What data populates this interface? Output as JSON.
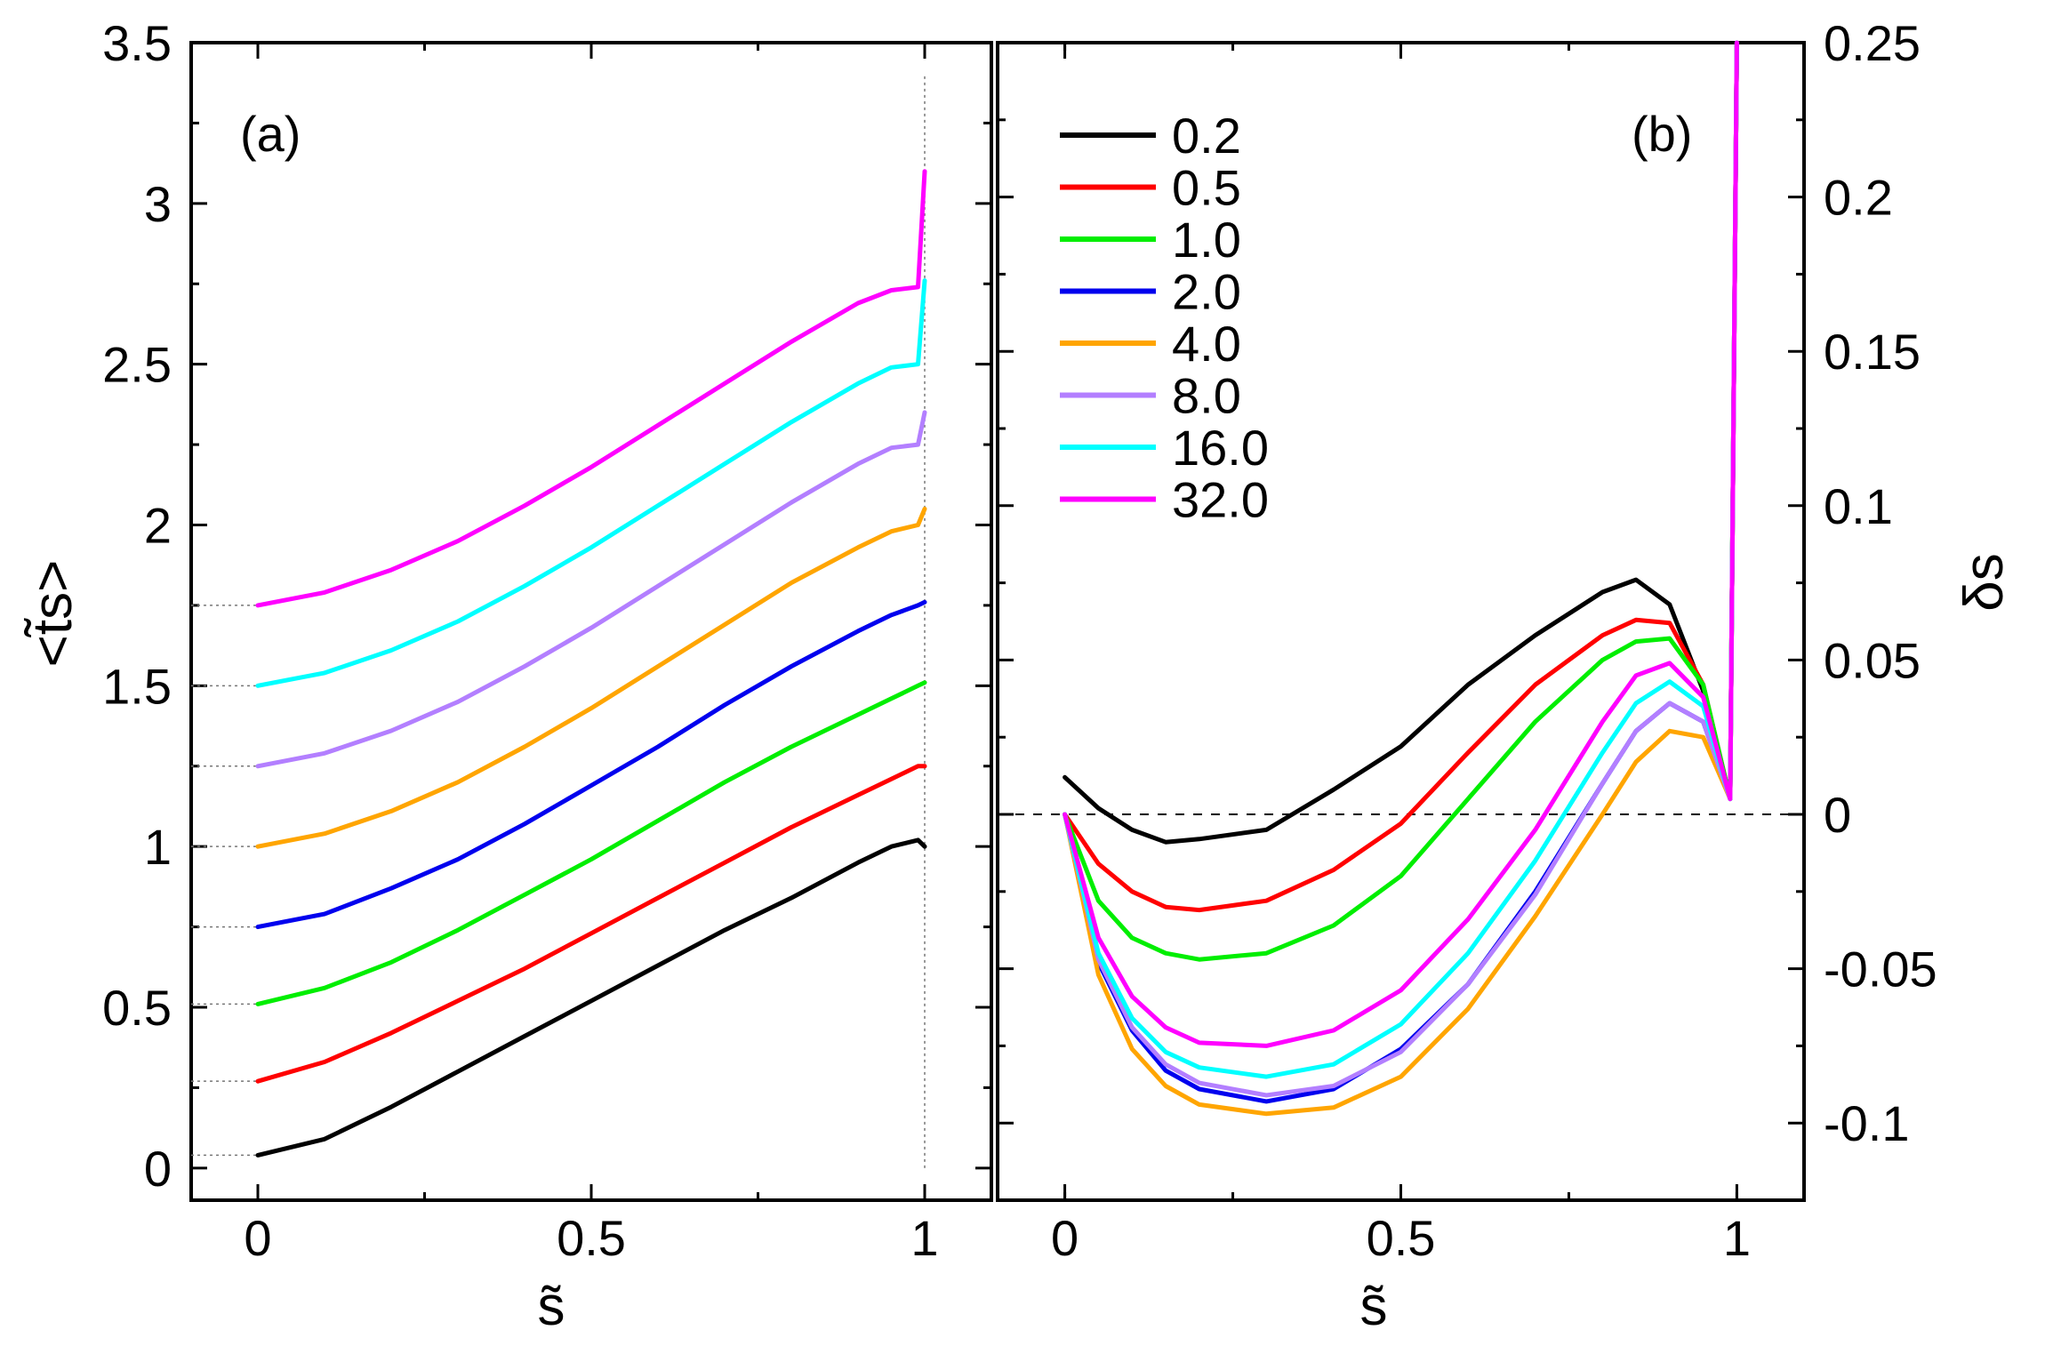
{
  "chart_data": [
    {
      "type": "line",
      "panel": "(a)",
      "xlabel": "s̃",
      "ylabel": "<t̃s>",
      "xlim": [
        -0.1,
        1.1
      ],
      "ylim": [
        -0.1,
        3.5
      ],
      "x_ticks": [
        "0",
        "0.5",
        "1"
      ],
      "y_ticks": [
        "0",
        "0.5",
        "1",
        "1.5",
        "2",
        "2.5",
        "3",
        "3.5"
      ],
      "x_tick_values": [
        0,
        0.5,
        1
      ],
      "y_tick_values": [
        0,
        0.5,
        1,
        1.5,
        2,
        2.5,
        3,
        3.5
      ],
      "note": "curves offset vertically by 0.25 each; end spike at s=1",
      "series": [
        {
          "name": "0.2",
          "color": "#000000",
          "x": [
            0,
            0.1,
            0.2,
            0.3,
            0.4,
            0.5,
            0.6,
            0.7,
            0.8,
            0.9,
            0.95,
            0.99,
            1.0
          ],
          "values": [
            0.04,
            0.09,
            0.19,
            0.3,
            0.41,
            0.52,
            0.63,
            0.74,
            0.84,
            0.95,
            1.0,
            1.02,
            1.0
          ]
        },
        {
          "name": "0.5",
          "color": "#ff0000",
          "x": [
            0,
            0.1,
            0.2,
            0.3,
            0.4,
            0.5,
            0.6,
            0.7,
            0.8,
            0.9,
            0.95,
            0.99,
            1.0
          ],
          "values": [
            0.27,
            0.33,
            0.42,
            0.52,
            0.62,
            0.73,
            0.84,
            0.95,
            1.06,
            1.16,
            1.21,
            1.25,
            1.25
          ]
        },
        {
          "name": "1.0",
          "color": "#00ee00",
          "x": [
            0,
            0.1,
            0.2,
            0.3,
            0.4,
            0.5,
            0.6,
            0.7,
            0.8,
            0.9,
            0.95,
            0.99,
            1.0
          ],
          "values": [
            0.51,
            0.56,
            0.64,
            0.74,
            0.85,
            0.96,
            1.08,
            1.2,
            1.31,
            1.41,
            1.46,
            1.5,
            1.51
          ]
        },
        {
          "name": "2.0",
          "color": "#0000ee",
          "x": [
            0,
            0.1,
            0.2,
            0.3,
            0.4,
            0.5,
            0.6,
            0.7,
            0.8,
            0.9,
            0.95,
            0.99,
            1.0
          ],
          "values": [
            0.75,
            0.79,
            0.87,
            0.96,
            1.07,
            1.19,
            1.31,
            1.44,
            1.56,
            1.67,
            1.72,
            1.75,
            1.76
          ]
        },
        {
          "name": "4.0",
          "color": "#ffa500",
          "x": [
            0,
            0.1,
            0.2,
            0.3,
            0.4,
            0.5,
            0.6,
            0.7,
            0.8,
            0.9,
            0.95,
            0.99,
            1.0
          ],
          "values": [
            1.0,
            1.04,
            1.11,
            1.2,
            1.31,
            1.43,
            1.56,
            1.69,
            1.82,
            1.93,
            1.98,
            2.0,
            2.05
          ]
        },
        {
          "name": "8.0",
          "color": "#b37fff",
          "x": [
            0,
            0.1,
            0.2,
            0.3,
            0.4,
            0.5,
            0.6,
            0.7,
            0.8,
            0.9,
            0.95,
            0.99,
            1.0
          ],
          "values": [
            1.25,
            1.29,
            1.36,
            1.45,
            1.56,
            1.68,
            1.81,
            1.94,
            2.07,
            2.19,
            2.24,
            2.25,
            2.35
          ]
        },
        {
          "name": "16.0",
          "color": "#00ffff",
          "x": [
            0,
            0.1,
            0.2,
            0.3,
            0.4,
            0.5,
            0.6,
            0.7,
            0.8,
            0.9,
            0.95,
            0.99,
            1.0
          ],
          "values": [
            1.5,
            1.54,
            1.61,
            1.7,
            1.81,
            1.93,
            2.06,
            2.19,
            2.32,
            2.44,
            2.49,
            2.5,
            2.76
          ]
        },
        {
          "name": "32.0",
          "color": "#ff00ff",
          "x": [
            0,
            0.1,
            0.2,
            0.3,
            0.4,
            0.5,
            0.6,
            0.7,
            0.8,
            0.9,
            0.95,
            0.99,
            1.0
          ],
          "values": [
            1.75,
            1.79,
            1.86,
            1.95,
            2.06,
            2.18,
            2.31,
            2.44,
            2.57,
            2.69,
            2.73,
            2.74,
            3.1
          ]
        }
      ]
    },
    {
      "type": "line",
      "panel": "(b)",
      "xlabel": "s̃",
      "ylabel": "δs",
      "xlim": [
        -0.1,
        1.1
      ],
      "ylim": [
        -0.125,
        0.25
      ],
      "x_ticks": [
        "0",
        "0.5",
        "1"
      ],
      "y_ticks": [
        "-0.1",
        "-0.05",
        "0",
        "0.05",
        "0.1",
        "0.15",
        "0.2",
        "0.25"
      ],
      "x_tick_values": [
        0,
        0.5,
        1
      ],
      "y_tick_values": [
        -0.1,
        -0.05,
        0,
        0.05,
        0.1,
        0.15,
        0.2,
        0.25
      ],
      "legend": {
        "position": "top-left",
        "entries": [
          "0.2",
          "0.5",
          "1.0",
          "2.0",
          "4.0",
          "8.0",
          "16.0",
          "32.0"
        ]
      },
      "series": [
        {
          "name": "0.2",
          "color": "#000000",
          "x": [
            0,
            0.05,
            0.1,
            0.15,
            0.2,
            0.3,
            0.4,
            0.5,
            0.6,
            0.7,
            0.8,
            0.85,
            0.9,
            0.95,
            0.99,
            1.0
          ],
          "values": [
            0.012,
            0.002,
            -0.005,
            -0.009,
            -0.008,
            -0.005,
            0.008,
            0.022,
            0.042,
            0.058,
            0.072,
            0.076,
            0.068,
            0.04,
            0.005,
            0.25
          ]
        },
        {
          "name": "0.5",
          "color": "#ff0000",
          "x": [
            0,
            0.05,
            0.1,
            0.15,
            0.2,
            0.3,
            0.4,
            0.5,
            0.6,
            0.7,
            0.8,
            0.85,
            0.9,
            0.95,
            0.99,
            1.0
          ],
          "values": [
            0.0,
            -0.016,
            -0.025,
            -0.03,
            -0.031,
            -0.028,
            -0.018,
            -0.003,
            0.02,
            0.042,
            0.058,
            0.063,
            0.062,
            0.042,
            0.005,
            0.25
          ]
        },
        {
          "name": "1.0",
          "color": "#00ee00",
          "x": [
            0,
            0.05,
            0.1,
            0.15,
            0.2,
            0.3,
            0.4,
            0.5,
            0.6,
            0.7,
            0.8,
            0.85,
            0.9,
            0.95,
            0.99,
            1.0
          ],
          "values": [
            0.0,
            -0.028,
            -0.04,
            -0.045,
            -0.047,
            -0.045,
            -0.036,
            -0.02,
            0.005,
            0.03,
            0.05,
            0.056,
            0.057,
            0.042,
            0.005,
            0.25
          ]
        },
        {
          "name": "2.0",
          "color": "#0000ee",
          "x": [
            0,
            0.05,
            0.1,
            0.15,
            0.2,
            0.3,
            0.4,
            0.5,
            0.6,
            0.7,
            0.8,
            0.85,
            0.9,
            0.95,
            0.99,
            1.0
          ],
          "values": [
            0.0,
            -0.048,
            -0.07,
            -0.083,
            -0.089,
            -0.093,
            -0.089,
            -0.076,
            -0.055,
            -0.025,
            0.01,
            0.027,
            0.036,
            0.03,
            0.005,
            0.25
          ]
        },
        {
          "name": "4.0",
          "color": "#ffa500",
          "x": [
            0,
            0.05,
            0.1,
            0.15,
            0.2,
            0.3,
            0.4,
            0.5,
            0.6,
            0.7,
            0.8,
            0.85,
            0.9,
            0.95,
            0.99,
            1.0
          ],
          "values": [
            0.0,
            -0.052,
            -0.076,
            -0.088,
            -0.094,
            -0.097,
            -0.095,
            -0.085,
            -0.063,
            -0.033,
            0.0,
            0.017,
            0.027,
            0.025,
            0.005,
            0.25
          ]
        },
        {
          "name": "8.0",
          "color": "#b37fff",
          "x": [
            0,
            0.05,
            0.1,
            0.15,
            0.2,
            0.3,
            0.4,
            0.5,
            0.6,
            0.7,
            0.8,
            0.85,
            0.9,
            0.95,
            0.99,
            1.0
          ],
          "values": [
            0.0,
            -0.047,
            -0.069,
            -0.081,
            -0.087,
            -0.091,
            -0.088,
            -0.077,
            -0.055,
            -0.026,
            0.01,
            0.027,
            0.036,
            0.03,
            0.005,
            0.25
          ]
        },
        {
          "name": "16.0",
          "color": "#00ffff",
          "x": [
            0,
            0.05,
            0.1,
            0.15,
            0.2,
            0.3,
            0.4,
            0.5,
            0.6,
            0.7,
            0.8,
            0.85,
            0.9,
            0.95,
            0.99,
            1.0
          ],
          "values": [
            0.0,
            -0.045,
            -0.066,
            -0.077,
            -0.082,
            -0.085,
            -0.081,
            -0.068,
            -0.045,
            -0.015,
            0.02,
            0.036,
            0.043,
            0.035,
            0.005,
            0.25
          ]
        },
        {
          "name": "32.0",
          "color": "#ff00ff",
          "x": [
            0,
            0.05,
            0.1,
            0.15,
            0.2,
            0.3,
            0.4,
            0.5,
            0.6,
            0.7,
            0.8,
            0.85,
            0.9,
            0.95,
            0.99,
            1.0
          ],
          "values": [
            0.0,
            -0.04,
            -0.059,
            -0.069,
            -0.074,
            -0.075,
            -0.07,
            -0.057,
            -0.034,
            -0.005,
            0.03,
            0.045,
            0.049,
            0.038,
            0.005,
            0.25
          ]
        }
      ]
    }
  ]
}
